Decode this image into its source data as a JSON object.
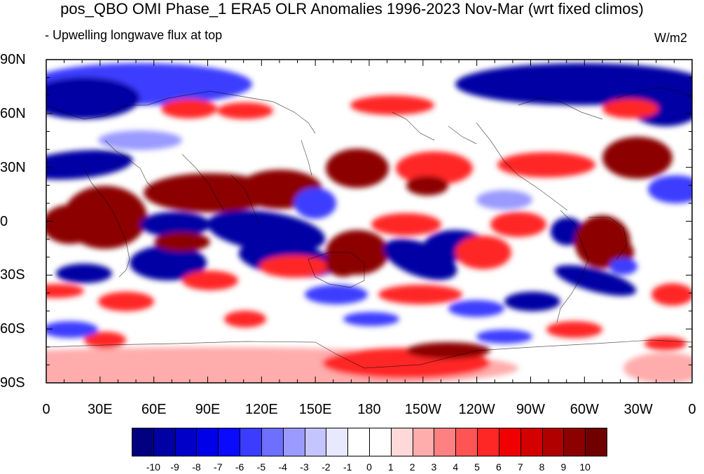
{
  "title": "pos_QBO OMI Phase_1 ERA5 OLR Anomalies 1996-2023 Nov-Mar (wrt fixed climos)",
  "subtitle": "- Upwelling longwave flux at top",
  "units": "W/m2",
  "lat_labels": [
    "90N",
    "60N",
    "30N",
    "0",
    "30S",
    "60S",
    "90S"
  ],
  "lon_labels": [
    "0",
    "30E",
    "60E",
    "90E",
    "120E",
    "150E",
    "180",
    "150W",
    "120W",
    "90W",
    "60W",
    "30W",
    "0"
  ],
  "colorbar": {
    "labels": [
      "-10",
      "-9",
      "-8",
      "-7",
      "-6",
      "-5",
      "-4",
      "-3",
      "-2",
      "-1",
      "0",
      "1",
      "2",
      "3",
      "4",
      "5",
      "6",
      "7",
      "8",
      "9",
      "10"
    ],
    "colors": [
      "#000080",
      "#0000a4",
      "#0000c8",
      "#0000e8",
      "#0a0aff",
      "#3c3cff",
      "#6e6eff",
      "#9a9aff",
      "#c4c4ff",
      "#e8e8ff",
      "#ffffff",
      "#ffffff",
      "#ffd8d8",
      "#ffacac",
      "#ff8080",
      "#ff5454",
      "#ff2626",
      "#f00000",
      "#d40000",
      "#b00000",
      "#8c0000",
      "#700000"
    ]
  },
  "field": {
    "background": "#ffffff",
    "colors": {
      "strong_neg": "#0000a4",
      "mid_neg": "#3c3cff",
      "weak_neg": "#9a9aff",
      "weak_pos": "#ffacac",
      "mid_pos": "#ff2626",
      "strong_pos": "#8c0000"
    }
  }
}
